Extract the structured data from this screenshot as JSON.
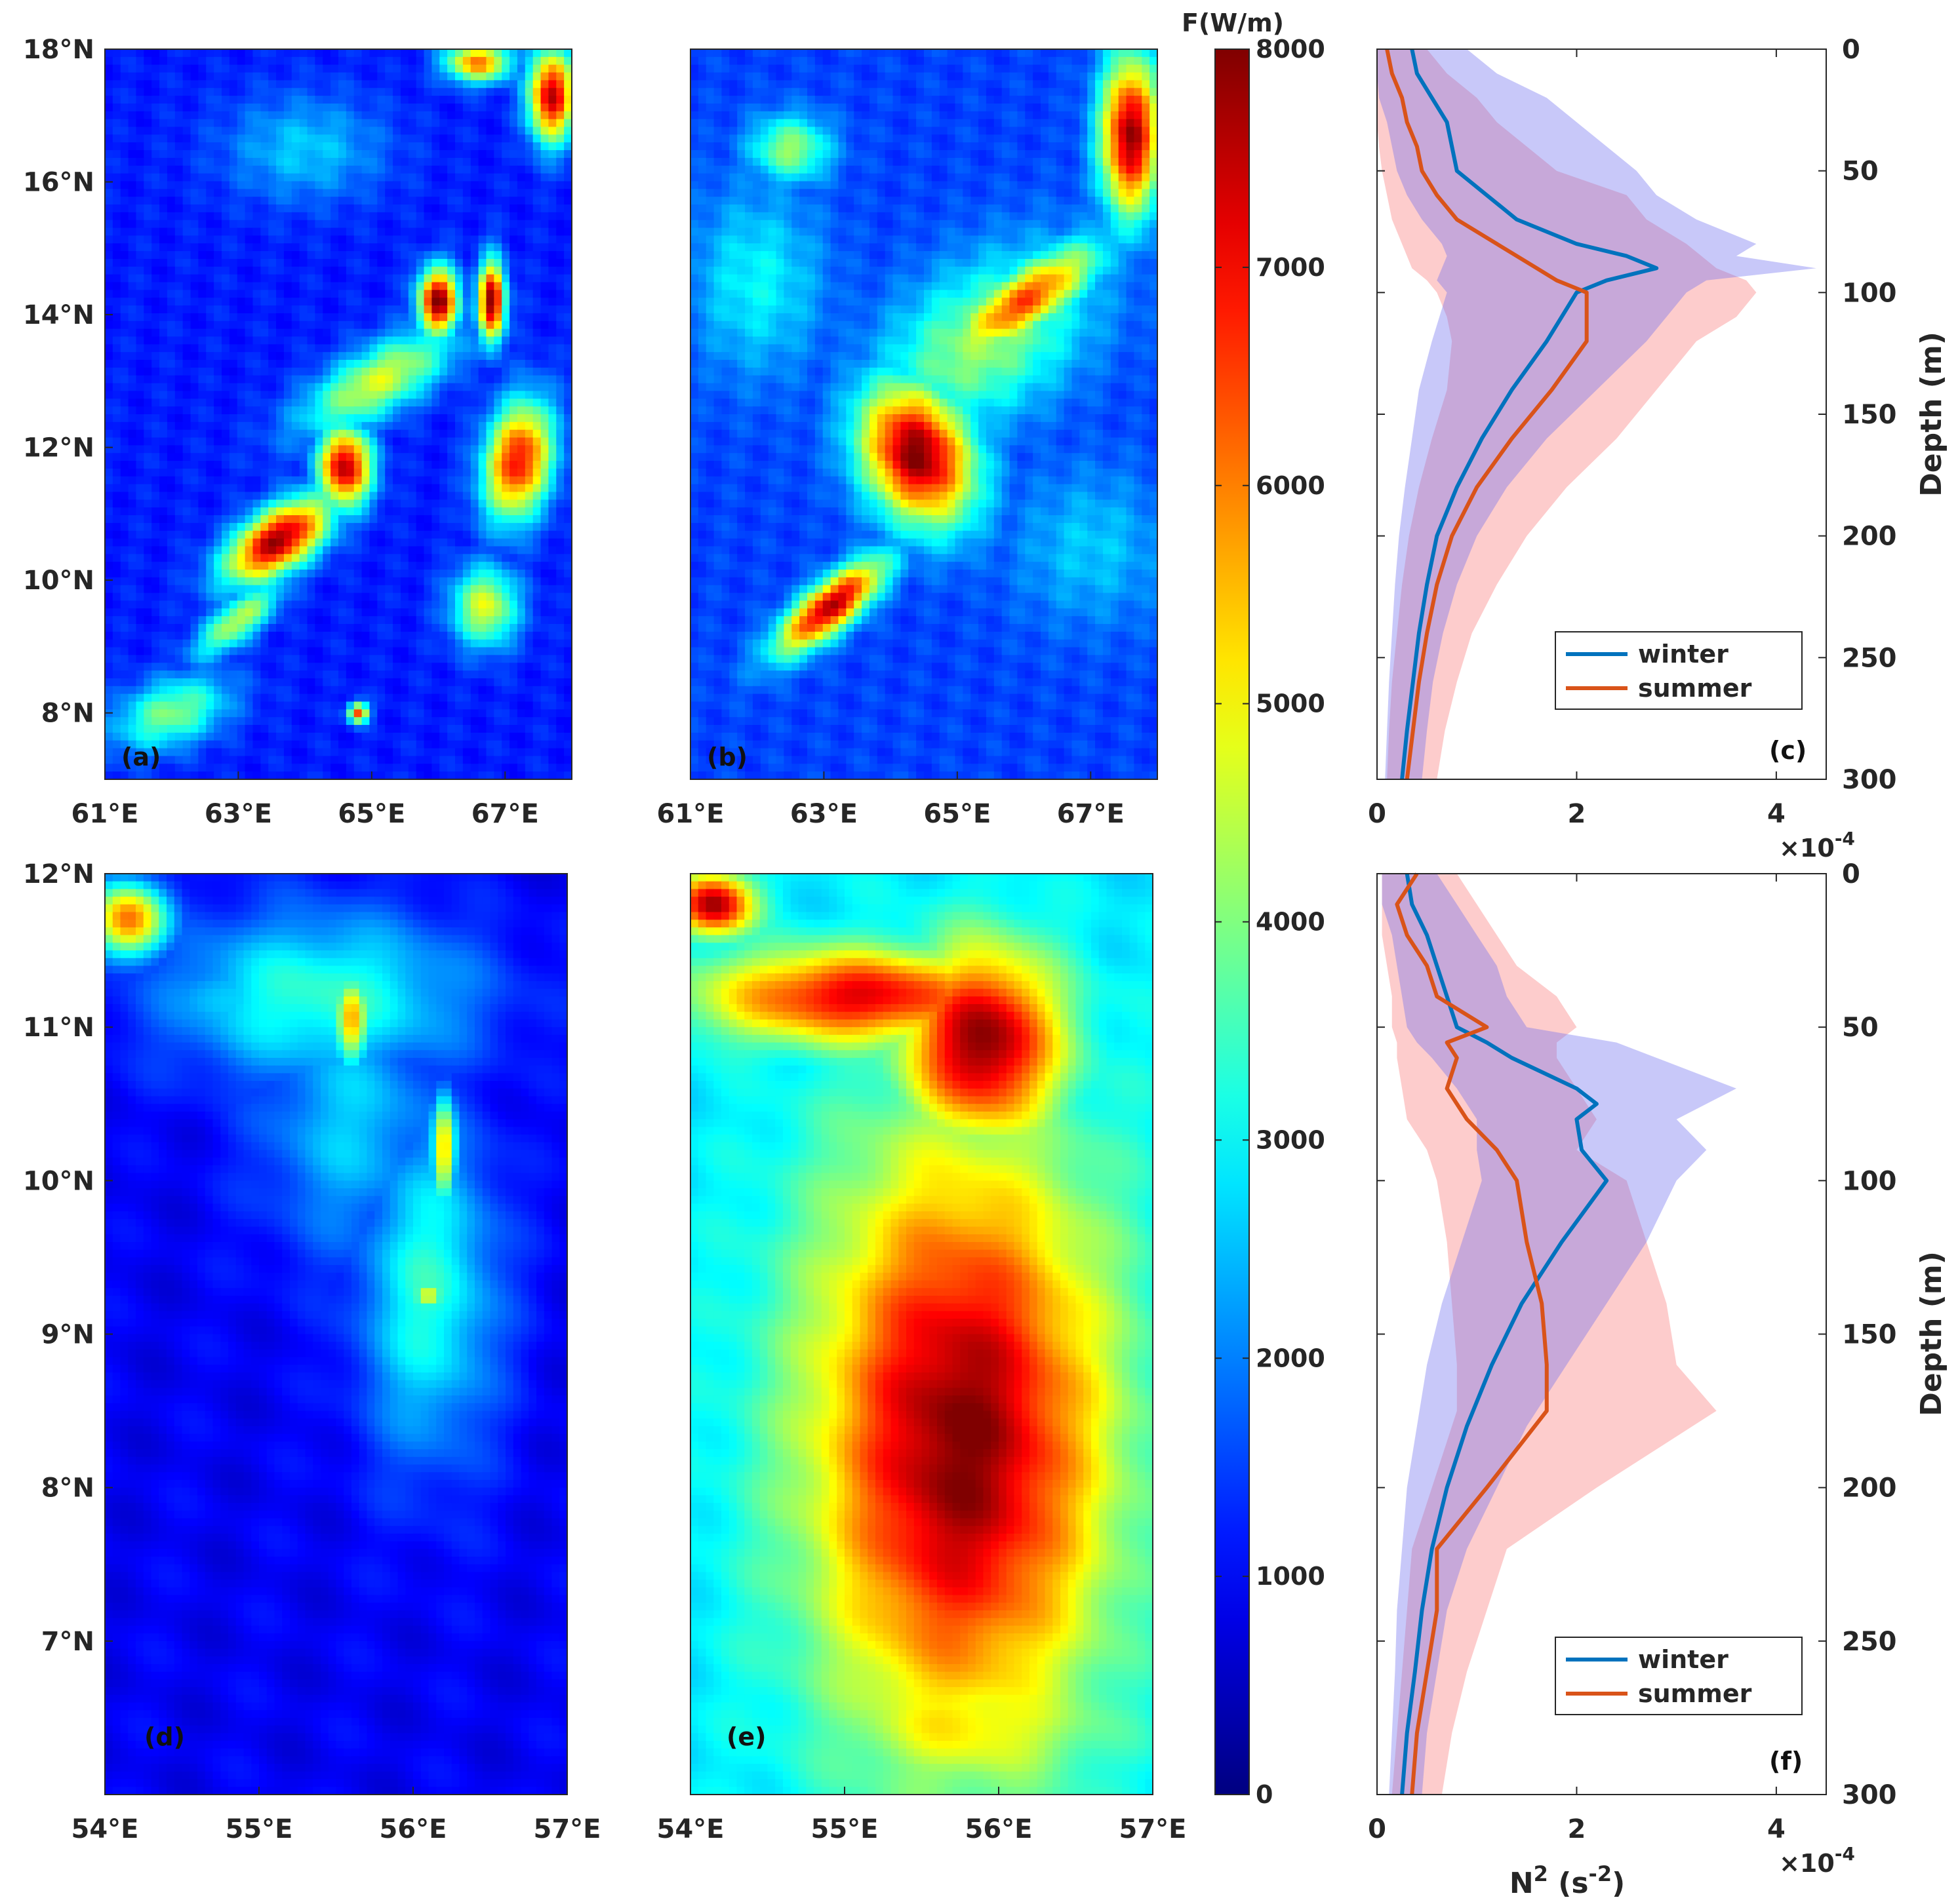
{
  "colorbar": {
    "title": "F(W/m)",
    "min": 0,
    "max": 8000,
    "ticks": [
      "0",
      "1000",
      "2000",
      "3000",
      "4000",
      "5000",
      "6000",
      "7000",
      "8000"
    ],
    "colormap": "jet"
  },
  "chart_data": [
    {
      "type": "heatmap",
      "panel": "(a)",
      "x_ticks": [
        "61°E",
        "63°E",
        "65°E",
        "67°E"
      ],
      "x_tick_values": [
        61,
        63,
        65,
        67
      ],
      "xlim": [
        61,
        68
      ],
      "y_ticks": [
        "8°N",
        "10°N",
        "12°N",
        "14°N",
        "16°N",
        "18°N"
      ],
      "y_tick_values": [
        8,
        10,
        12,
        14,
        16,
        18
      ],
      "ylim": [
        7,
        18
      ],
      "background_value": 1200,
      "blobs": [
        {
          "cx": 63.6,
          "cy": 10.6,
          "sx": 0.9,
          "sy": 0.45,
          "angle": 35,
          "v": 7800
        },
        {
          "cx": 64.6,
          "cy": 11.7,
          "sx": 0.4,
          "sy": 0.6,
          "angle": 0,
          "v": 7600
        },
        {
          "cx": 63.0,
          "cy": 9.4,
          "sx": 0.8,
          "sy": 0.3,
          "angle": 40,
          "v": 4500
        },
        {
          "cx": 66.0,
          "cy": 14.2,
          "sx": 0.3,
          "sy": 0.5,
          "angle": 0,
          "v": 8000
        },
        {
          "cx": 66.8,
          "cy": 14.2,
          "sx": 0.2,
          "sy": 0.6,
          "angle": 0,
          "v": 8000
        },
        {
          "cx": 67.2,
          "cy": 11.8,
          "sx": 0.5,
          "sy": 0.9,
          "angle": -10,
          "v": 7000
        },
        {
          "cx": 67.7,
          "cy": 17.3,
          "sx": 0.35,
          "sy": 0.7,
          "angle": 0,
          "v": 7500
        },
        {
          "cx": 65.1,
          "cy": 13.0,
          "sx": 1.3,
          "sy": 0.5,
          "angle": 30,
          "v": 4700
        },
        {
          "cx": 66.6,
          "cy": 17.8,
          "sx": 0.5,
          "sy": 0.3,
          "angle": 0,
          "v": 6000
        },
        {
          "cx": 64.0,
          "cy": 16.5,
          "sx": 1.2,
          "sy": 0.8,
          "angle": 0,
          "v": 2600
        },
        {
          "cx": 66.7,
          "cy": 9.6,
          "sx": 0.5,
          "sy": 0.6,
          "angle": 0,
          "v": 4800
        },
        {
          "cx": 62.0,
          "cy": 8.0,
          "sx": 0.9,
          "sy": 0.5,
          "angle": 20,
          "v": 4000
        },
        {
          "cx": 64.8,
          "cy": 8.0,
          "sx": 0.15,
          "sy": 0.15,
          "angle": 0,
          "v": 6500
        }
      ]
    },
    {
      "type": "heatmap",
      "panel": "(b)",
      "x_ticks": [
        "61°E",
        "63°E",
        "65°E",
        "67°E"
      ],
      "x_tick_values": [
        61,
        63,
        65,
        67
      ],
      "xlim": [
        61,
        68
      ],
      "y_ticks": [],
      "ylim": [
        7,
        18
      ],
      "background_value": 1500,
      "blobs": [
        {
          "cx": 64.4,
          "cy": 11.9,
          "sx": 0.8,
          "sy": 1.1,
          "angle": 25,
          "v": 8000
        },
        {
          "cx": 63.1,
          "cy": 9.6,
          "sx": 1.0,
          "sy": 0.35,
          "angle": 40,
          "v": 7600
        },
        {
          "cx": 66.0,
          "cy": 14.2,
          "sx": 1.3,
          "sy": 0.45,
          "angle": 35,
          "v": 6500
        },
        {
          "cx": 67.6,
          "cy": 16.7,
          "sx": 0.45,
          "sy": 1.2,
          "angle": 0,
          "v": 7800
        },
        {
          "cx": 65.4,
          "cy": 13.6,
          "sx": 1.8,
          "sy": 1.1,
          "angle": 35,
          "v": 4200
        },
        {
          "cx": 62.0,
          "cy": 14.5,
          "sx": 1.0,
          "sy": 1.4,
          "angle": 0,
          "v": 3000
        },
        {
          "cx": 67.0,
          "cy": 10.5,
          "sx": 1.2,
          "sy": 1.2,
          "angle": 0,
          "v": 2600
        },
        {
          "cx": 62.5,
          "cy": 16.5,
          "sx": 0.6,
          "sy": 0.5,
          "angle": 0,
          "v": 4200
        }
      ]
    },
    {
      "type": "line",
      "panel": "(c)",
      "xlabel": "",
      "x_ticks": [
        "0",
        "2",
        "4"
      ],
      "x_tick_values": [
        0,
        2,
        4
      ],
      "x_multiplier": "×10",
      "x_multiplier_exp": "-4",
      "xlim": [
        0,
        4.5
      ],
      "ylabel": "Depth (m)",
      "y_ticks": [
        "0",
        "50",
        "100",
        "150",
        "200",
        "250",
        "300"
      ],
      "y_tick_values": [
        0,
        50,
        100,
        150,
        200,
        250,
        300
      ],
      "ylim": [
        0,
        300
      ],
      "legend": "bottom-right",
      "series": [
        {
          "name": "winter",
          "color": "#0072BD",
          "depth": [
            0,
            10,
            20,
            30,
            40,
            50,
            60,
            70,
            80,
            85,
            90,
            95,
            100,
            120,
            140,
            160,
            180,
            200,
            220,
            240,
            260,
            280,
            300
          ],
          "values": [
            0.35,
            0.4,
            0.55,
            0.7,
            0.75,
            0.8,
            1.1,
            1.4,
            2.0,
            2.5,
            2.8,
            2.3,
            2.0,
            1.7,
            1.35,
            1.05,
            0.8,
            0.6,
            0.5,
            0.42,
            0.36,
            0.3,
            0.25
          ],
          "lower": [
            0.0,
            0.0,
            0.02,
            0.1,
            0.15,
            0.2,
            0.3,
            0.45,
            0.65,
            0.7,
            0.65,
            0.6,
            0.7,
            0.55,
            0.42,
            0.35,
            0.28,
            0.22,
            0.18,
            0.15,
            0.12,
            0.1,
            0.08
          ],
          "upper": [
            0.9,
            1.2,
            1.7,
            2.0,
            2.3,
            2.6,
            2.8,
            3.2,
            3.8,
            3.6,
            4.4,
            3.3,
            3.1,
            2.7,
            2.2,
            1.7,
            1.3,
            1.0,
            0.8,
            0.66,
            0.56,
            0.5,
            0.45
          ]
        },
        {
          "name": "summer",
          "color": "#D95319",
          "depth": [
            0,
            10,
            20,
            30,
            40,
            50,
            60,
            70,
            80,
            90,
            95,
            100,
            110,
            120,
            140,
            160,
            180,
            200,
            220,
            240,
            260,
            280,
            300
          ],
          "values": [
            0.1,
            0.15,
            0.25,
            0.3,
            0.4,
            0.45,
            0.6,
            0.8,
            1.2,
            1.6,
            1.8,
            2.1,
            2.1,
            2.1,
            1.75,
            1.35,
            1.0,
            0.75,
            0.6,
            0.5,
            0.42,
            0.36,
            0.3
          ],
          "lower": [
            0.0,
            0.0,
            0.0,
            0.0,
            0.02,
            0.05,
            0.1,
            0.15,
            0.25,
            0.35,
            0.5,
            0.6,
            0.7,
            0.75,
            0.7,
            0.55,
            0.42,
            0.32,
            0.25,
            0.2,
            0.15,
            0.12,
            0.1
          ],
          "upper": [
            0.5,
            0.7,
            1.0,
            1.2,
            1.5,
            1.8,
            2.5,
            2.7,
            3.1,
            3.4,
            3.7,
            3.8,
            3.6,
            3.2,
            2.8,
            2.4,
            1.9,
            1.5,
            1.2,
            0.95,
            0.8,
            0.68,
            0.6
          ]
        }
      ]
    },
    {
      "type": "heatmap",
      "panel": "(d)",
      "x_ticks": [
        "54°E",
        "55°E",
        "56°E",
        "57°E"
      ],
      "x_tick_values": [
        54,
        55,
        56,
        57
      ],
      "xlim": [
        54,
        57
      ],
      "y_ticks": [
        "7°N",
        "8°N",
        "9°N",
        "10°N",
        "11°N",
        "12°N"
      ],
      "y_tick_values": [
        7,
        8,
        9,
        10,
        11,
        12
      ],
      "ylim": [
        6,
        12
      ],
      "background_value": 900,
      "blobs": [
        {
          "cx": 55.4,
          "cy": 11.2,
          "sx": 1.0,
          "sy": 0.55,
          "angle": 0,
          "v": 3400
        },
        {
          "cx": 56.1,
          "cy": 9.3,
          "sx": 0.45,
          "sy": 1.1,
          "angle": 0,
          "v": 3300
        },
        {
          "cx": 55.6,
          "cy": 10.4,
          "sx": 0.6,
          "sy": 0.9,
          "angle": 0,
          "v": 2600
        },
        {
          "cx": 55.6,
          "cy": 11.05,
          "sx": 0.12,
          "sy": 0.3,
          "angle": 0,
          "v": 5600
        },
        {
          "cx": 56.2,
          "cy": 10.2,
          "sx": 0.08,
          "sy": 0.35,
          "angle": 0,
          "v": 5400
        },
        {
          "cx": 56.1,
          "cy": 9.25,
          "sx": 0.12,
          "sy": 0.1,
          "angle": 0,
          "v": 4800
        },
        {
          "cx": 54.15,
          "cy": 11.7,
          "sx": 0.25,
          "sy": 0.25,
          "angle": 0,
          "v": 6200
        },
        {
          "cx": 54.8,
          "cy": 11.2,
          "sx": 0.4,
          "sy": 0.3,
          "angle": 0,
          "v": 2800
        }
      ]
    },
    {
      "type": "heatmap",
      "panel": "(e)",
      "x_ticks": [
        "54°E",
        "55°E",
        "56°E",
        "57°E"
      ],
      "x_tick_values": [
        54,
        55,
        56,
        57
      ],
      "xlim": [
        54,
        57
      ],
      "y_ticks": [],
      "ylim": [
        6,
        12
      ],
      "background_value": 2800,
      "blobs": [
        {
          "cx": 55.75,
          "cy": 8.3,
          "sx": 0.95,
          "sy": 1.9,
          "angle": 0,
          "v": 8000
        },
        {
          "cx": 55.9,
          "cy": 10.9,
          "sx": 0.5,
          "sy": 0.6,
          "angle": 0,
          "v": 8000
        },
        {
          "cx": 55.1,
          "cy": 11.2,
          "sx": 1.0,
          "sy": 0.3,
          "angle": 0,
          "v": 7200
        },
        {
          "cx": 54.15,
          "cy": 11.8,
          "sx": 0.25,
          "sy": 0.2,
          "angle": 0,
          "v": 7800
        },
        {
          "cx": 55.8,
          "cy": 6.5,
          "sx": 0.9,
          "sy": 0.5,
          "angle": 0,
          "v": 5200
        }
      ]
    },
    {
      "type": "line",
      "panel": "(f)",
      "xlabel": "N2 (s-2)",
      "x_ticks": [
        "0",
        "2",
        "4"
      ],
      "x_tick_values": [
        0,
        2,
        4
      ],
      "x_multiplier": "×10",
      "x_multiplier_exp": "-4",
      "xlim": [
        0,
        4.5
      ],
      "ylabel": "Depth (m)",
      "y_ticks": [
        "0",
        "50",
        "100",
        "150",
        "200",
        "250",
        "300"
      ],
      "y_tick_values": [
        0,
        50,
        100,
        150,
        200,
        250,
        300
      ],
      "ylim": [
        0,
        300
      ],
      "legend": "bottom-right",
      "series": [
        {
          "name": "winter",
          "color": "#0072BD",
          "depth": [
            0,
            10,
            20,
            30,
            40,
            50,
            55,
            60,
            70,
            75,
            80,
            90,
            100,
            120,
            140,
            160,
            180,
            200,
            220,
            240,
            260,
            280,
            300
          ],
          "values": [
            0.3,
            0.35,
            0.5,
            0.6,
            0.7,
            0.8,
            1.1,
            1.35,
            2.0,
            2.2,
            2.0,
            2.05,
            2.3,
            1.85,
            1.45,
            1.15,
            0.9,
            0.7,
            0.55,
            0.45,
            0.38,
            0.3,
            0.25
          ],
          "lower": [
            0.05,
            0.05,
            0.15,
            0.2,
            0.25,
            0.3,
            0.4,
            0.55,
            0.8,
            0.9,
            1.0,
            1.0,
            1.05,
            0.85,
            0.65,
            0.5,
            0.4,
            0.3,
            0.25,
            0.2,
            0.18,
            0.15,
            0.12
          ],
          "upper": [
            0.6,
            0.8,
            1.0,
            1.2,
            1.3,
            1.5,
            2.4,
            2.8,
            3.6,
            3.3,
            3.0,
            3.3,
            3.0,
            2.7,
            2.3,
            1.9,
            1.5,
            1.2,
            0.9,
            0.7,
            0.6,
            0.5,
            0.45
          ]
        },
        {
          "name": "summer",
          "color": "#D95319",
          "depth": [
            0,
            10,
            20,
            30,
            40,
            50,
            55,
            60,
            70,
            80,
            90,
            100,
            120,
            140,
            160,
            175,
            200,
            220,
            240,
            260,
            280,
            300
          ],
          "values": [
            0.4,
            0.2,
            0.3,
            0.5,
            0.6,
            1.1,
            0.7,
            0.8,
            0.7,
            0.9,
            1.2,
            1.4,
            1.5,
            1.65,
            1.7,
            1.7,
            1.1,
            0.6,
            0.6,
            0.5,
            0.4,
            0.35
          ],
          "lower": [
            0.05,
            0.05,
            0.05,
            0.1,
            0.15,
            0.15,
            0.2,
            0.2,
            0.25,
            0.3,
            0.5,
            0.6,
            0.7,
            0.75,
            0.8,
            0.8,
            0.55,
            0.35,
            0.3,
            0.25,
            0.2,
            0.15
          ],
          "upper": [
            0.8,
            1.0,
            1.2,
            1.4,
            1.8,
            2.0,
            1.8,
            1.8,
            2.0,
            2.2,
            2.0,
            2.5,
            2.7,
            2.9,
            3.0,
            3.4,
            2.2,
            1.3,
            1.1,
            0.9,
            0.75,
            0.65
          ]
        }
      ]
    }
  ]
}
